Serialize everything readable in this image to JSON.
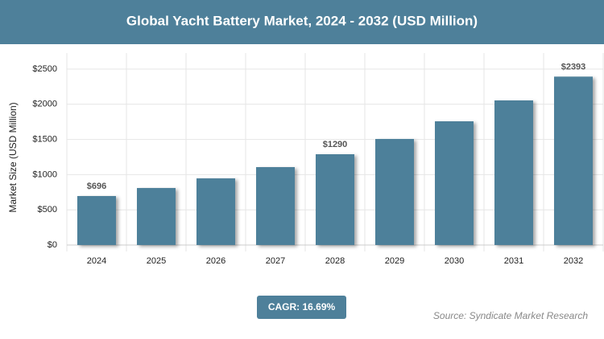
{
  "chart_data": {
    "type": "bar",
    "title": "Global Yacht Battery Market, 2024 - 2032 (USD Million)",
    "y_label": "Market Size (USD Million)",
    "categories": [
      "2024",
      "2025",
      "2026",
      "2027",
      "2028",
      "2029",
      "2030",
      "2031",
      "2032"
    ],
    "values": [
      696,
      810,
      947,
      1107,
      1290,
      1507,
      1758,
      2055,
      2393
    ],
    "value_labels": [
      "$696",
      null,
      null,
      null,
      "$1290",
      null,
      null,
      null,
      "$2393"
    ],
    "color": "#4e809a",
    "ylim": [
      0,
      2500
    ],
    "yticks": [
      {
        "value": 0,
        "label": "$0"
      },
      {
        "value": 500,
        "label": "$500"
      },
      {
        "value": 1000,
        "label": "$1000"
      },
      {
        "value": 1500,
        "label": "$1500"
      },
      {
        "value": 2000,
        "label": "$2000"
      },
      {
        "value": 2500,
        "label": "$2500"
      }
    ],
    "grid": true,
    "cagr": "CAGR: 16.69%",
    "source": "Source: Syndicate Market Research"
  }
}
